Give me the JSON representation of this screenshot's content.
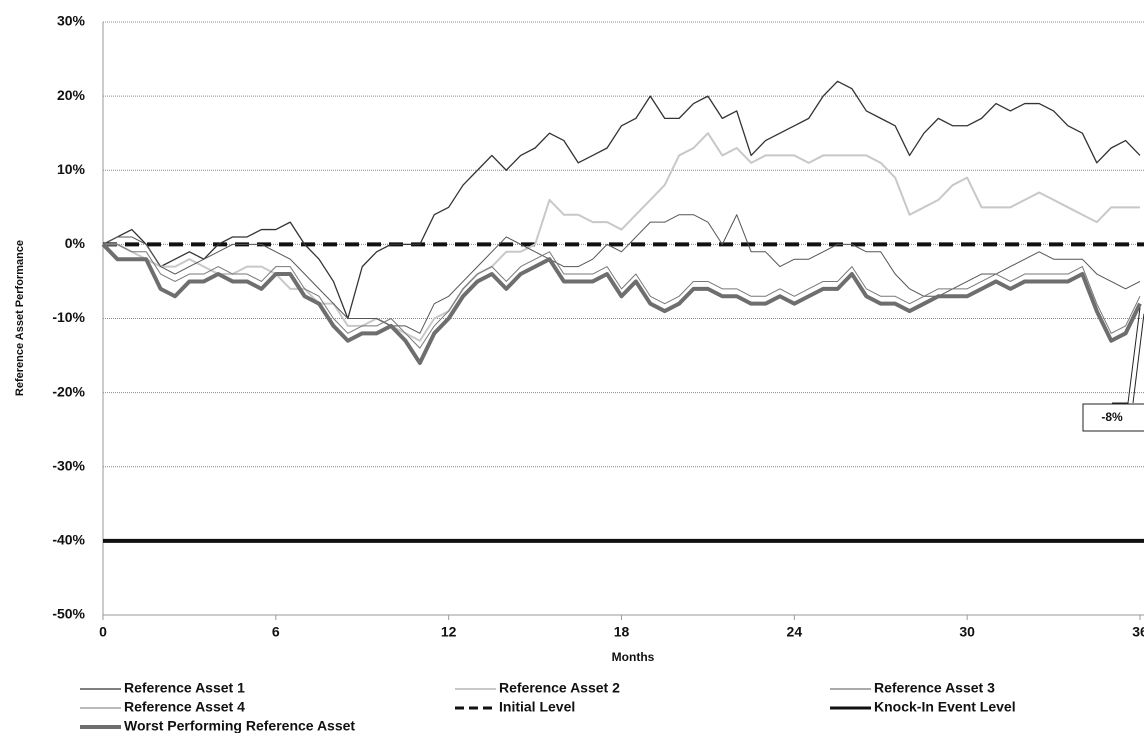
{
  "chart_data": {
    "type": "line",
    "x_label": "Months",
    "y_label": "Reference Asset Performance",
    "x": [
      0,
      0.5,
      1,
      1.5,
      2,
      2.5,
      3,
      3.5,
      4,
      4.5,
      5,
      5.5,
      6,
      6.5,
      7,
      7.5,
      8,
      8.5,
      9,
      9.5,
      10,
      10.5,
      11,
      11.5,
      12,
      12.5,
      13,
      13.5,
      14,
      14.5,
      15,
      15.5,
      16,
      16.5,
      17,
      17.5,
      18,
      18.5,
      19,
      19.5,
      20,
      20.5,
      21,
      21.5,
      22,
      22.5,
      23,
      23.5,
      24,
      24.5,
      25,
      25.5,
      26,
      26.5,
      27,
      27.5,
      28,
      28.5,
      29,
      29.5,
      30,
      30.5,
      31,
      31.5,
      32,
      32.5,
      33,
      33.5,
      34,
      34.5,
      35,
      35.5,
      36
    ],
    "series": [
      {
        "name": "Reference Asset 1",
        "color": "#333333",
        "values": [
          0,
          1,
          2,
          0,
          -3,
          -2,
          -1,
          -2,
          0,
          1,
          1,
          2,
          2,
          3,
          0,
          -2,
          -5,
          -10,
          -3,
          -1,
          0,
          0,
          0,
          4,
          5,
          8,
          10,
          12,
          10,
          12,
          13,
          15,
          14,
          11,
          12,
          13,
          16,
          17,
          20,
          17,
          17,
          19,
          20,
          17,
          18,
          12,
          14,
          15,
          16,
          17,
          20,
          22,
          21,
          18,
          17,
          16,
          12,
          15,
          17,
          16,
          16,
          17,
          19,
          18,
          19,
          19,
          18,
          16,
          15,
          11,
          13,
          14,
          12
        ]
      },
      {
        "name": "Reference Asset 2",
        "color": "#c8c8c8",
        "values": [
          0,
          0,
          -1,
          -2,
          -3,
          -3,
          -2,
          -3,
          -4,
          -4,
          -3,
          -3,
          -4,
          -6,
          -6,
          -8,
          -8,
          -11,
          -11,
          -10,
          -11,
          -12,
          -13,
          -10,
          -9,
          -6,
          -4,
          -3,
          -1,
          -1,
          0,
          6,
          4,
          4,
          3,
          3,
          2,
          4,
          6,
          8,
          12,
          13,
          15,
          12,
          13,
          11,
          12,
          12,
          12,
          11,
          12,
          12,
          12,
          12,
          11,
          9,
          4,
          5,
          6,
          8,
          9,
          5,
          5,
          5,
          6,
          7,
          6,
          5,
          4,
          3,
          5,
          5,
          5
        ]
      },
      {
        "name": "Reference Asset 3",
        "color": "#555555",
        "values": [
          0,
          1,
          1,
          0,
          -3,
          -4,
          -3,
          -2,
          -1,
          0,
          0,
          0,
          -1,
          -2,
          -4,
          -6,
          -8,
          -10,
          -10,
          -10,
          -11,
          -11,
          -12,
          -8,
          -7,
          -5,
          -3,
          -1,
          1,
          0,
          -1,
          -2,
          -3,
          -3,
          -2,
          0,
          -1,
          1,
          3,
          3,
          4,
          4,
          3,
          0,
          4,
          -1,
          -1,
          -3,
          -2,
          -2,
          -1,
          0,
          0,
          -1,
          -1,
          -4,
          -6,
          -7,
          -7,
          -6,
          -5,
          -4,
          -4,
          -3,
          -2,
          -1,
          -2,
          -2,
          -2,
          -4,
          -5,
          -6,
          -5
        ]
      },
      {
        "name": "Reference Asset 4",
        "color": "#777777",
        "values": [
          0,
          0,
          -1,
          -1,
          -4,
          -5,
          -4,
          -4,
          -3,
          -4,
          -4,
          -5,
          -3,
          -3,
          -6,
          -7,
          -10,
          -12,
          -11,
          -11,
          -10,
          -12,
          -14,
          -11,
          -9,
          -6,
          -4,
          -3,
          -5,
          -3,
          -2,
          -1,
          -4,
          -4,
          -4,
          -3,
          -6,
          -4,
          -7,
          -8,
          -7,
          -5,
          -5,
          -6,
          -6,
          -7,
          -7,
          -6,
          -7,
          -6,
          -5,
          -5,
          -3,
          -6,
          -7,
          -7,
          -8,
          -7,
          -6,
          -6,
          -6,
          -5,
          -4,
          -5,
          -4,
          -4,
          -4,
          -4,
          -3,
          -8,
          -12,
          -11,
          -7
        ]
      },
      {
        "name": "Worst Performing Reference Asset",
        "color": "#6e6e6e",
        "values": [
          0,
          -2,
          -2,
          -2,
          -6,
          -7,
          -5,
          -5,
          -4,
          -5,
          -5,
          -6,
          -4,
          -4,
          -7,
          -8,
          -11,
          -13,
          -12,
          -12,
          -11,
          -13,
          -16,
          -12,
          -10,
          -7,
          -5,
          -4,
          -6,
          -4,
          -3,
          -2,
          -5,
          -5,
          -5,
          -4,
          -7,
          -5,
          -8,
          -9,
          -8,
          -6,
          -6,
          -7,
          -7,
          -8,
          -8,
          -7,
          -8,
          -7,
          -6,
          -6,
          -4,
          -7,
          -8,
          -8,
          -9,
          -8,
          -7,
          -7,
          -7,
          -6,
          -5,
          -6,
          -5,
          -5,
          -5,
          -5,
          -4,
          -9,
          -13,
          -12,
          -8
        ]
      }
    ],
    "hlines": [
      {
        "name": "Initial Level",
        "color": "#111111",
        "value": 0,
        "dashed": true
      },
      {
        "name": "Knock-In Event Level",
        "color": "#111111",
        "value": -40,
        "dashed": false
      }
    ],
    "annotation": {
      "label": "-8%",
      "value": -8
    },
    "xlim": [
      0,
      36
    ],
    "xticks": [
      0,
      6,
      12,
      18,
      24,
      30,
      36
    ],
    "ylim": [
      -50,
      30
    ],
    "yticks": [
      {
        "value": -50,
        "label": "-50%"
      },
      {
        "value": -40,
        "label": "-40%"
      },
      {
        "value": -30,
        "label": "-30%"
      },
      {
        "value": -20,
        "label": "-20%"
      },
      {
        "value": -10,
        "label": "-10%"
      },
      {
        "value": 0,
        "label": "0%"
      },
      {
        "value": 10,
        "label": "10%"
      },
      {
        "value": 20,
        "label": "20%"
      },
      {
        "value": 30,
        "label": "30%"
      }
    ],
    "grid": true
  }
}
